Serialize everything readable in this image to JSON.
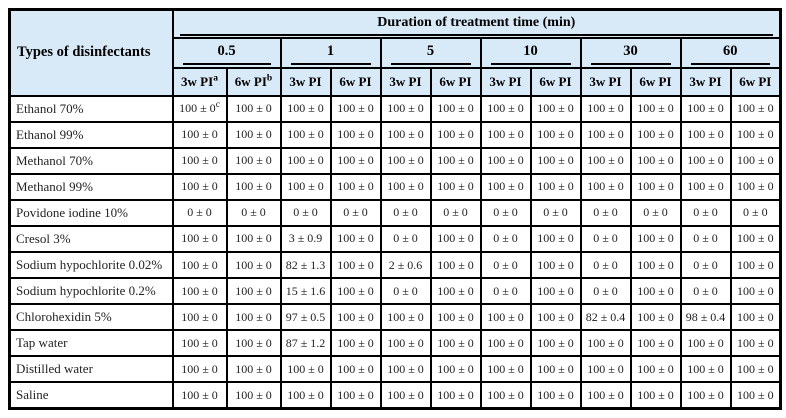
{
  "colors": {
    "header_bg": "#d8e9f7",
    "border": "#000000",
    "data_text": "#222222"
  },
  "table": {
    "corner_header": "Types of disinfectants",
    "duration_header": "Duration of treatment time (min)",
    "time_groups": [
      "0.5",
      "1",
      "5",
      "10",
      "30",
      "60"
    ],
    "pi_headers": [
      {
        "label": "3w PI",
        "sup": "a"
      },
      {
        "label": "6w PI",
        "sup": "b"
      },
      {
        "label": "3w PI"
      },
      {
        "label": "6w PI"
      },
      {
        "label": "3w PI"
      },
      {
        "label": "6w PI"
      },
      {
        "label": "3w PI"
      },
      {
        "label": "6w PI"
      },
      {
        "label": "3w PI"
      },
      {
        "label": "6w PI"
      },
      {
        "label": "3w PI"
      },
      {
        "label": "6w PI"
      }
    ],
    "rows": [
      {
        "label": "Ethanol 70%",
        "cells": [
          {
            "text": "100 ± 0",
            "sup": "c"
          },
          "100 ± 0",
          "100 ± 0",
          "100 ± 0",
          "100 ± 0",
          "100 ± 0",
          "100 ± 0",
          "100 ± 0",
          "100 ± 0",
          "100 ± 0",
          "100 ± 0",
          "100 ± 0"
        ]
      },
      {
        "label": "Ethanol 99%",
        "cells": [
          "100 ± 0",
          "100 ± 0",
          "100 ± 0",
          "100 ± 0",
          "100 ± 0",
          "100 ± 0",
          "100 ± 0",
          "100 ± 0",
          "100 ± 0",
          "100 ± 0",
          "100 ± 0",
          "100 ± 0"
        ]
      },
      {
        "label": "Methanol 70%",
        "cells": [
          "100 ± 0",
          "100 ± 0",
          "100 ± 0",
          "100 ± 0",
          "100 ± 0",
          "100 ± 0",
          "100 ± 0",
          "100 ± 0",
          "100 ± 0",
          "100 ± 0",
          "100 ± 0",
          "100 ± 0"
        ]
      },
      {
        "label": "Methanol 99%",
        "cells": [
          "100 ± 0",
          "100 ± 0",
          "100 ± 0",
          "100 ± 0",
          "100 ± 0",
          "100 ± 0",
          "100 ± 0",
          "100 ± 0",
          "100 ± 0",
          "100 ± 0",
          "100 ± 0",
          "100 ± 0"
        ]
      },
      {
        "label": "Povidone iodine 10%",
        "cells": [
          "0 ± 0",
          "0 ± 0",
          "0 ± 0",
          "0 ± 0",
          "0 ± 0",
          "0 ± 0",
          "0 ± 0",
          "0 ± 0",
          "0 ± 0",
          "0 ± 0",
          "0 ± 0",
          "0 ± 0"
        ]
      },
      {
        "label": "Cresol 3%",
        "cells": [
          "100 ± 0",
          "100 ± 0",
          "3 ± 0.9",
          "100 ± 0",
          "0 ± 0",
          "100 ± 0",
          "0 ± 0",
          "100 ± 0",
          "0 ± 0",
          "100 ± 0",
          "0 ± 0",
          "100 ± 0"
        ]
      },
      {
        "label": "Sodium hypochlorite 0.02%",
        "cells": [
          "100 ± 0",
          "100 ± 0",
          "82 ± 1.3",
          "100 ± 0",
          "2 ± 0.6",
          "100 ± 0",
          "0 ± 0",
          "100 ± 0",
          "0 ± 0",
          "100 ± 0",
          "0 ± 0",
          "100 ± 0"
        ]
      },
      {
        "label": "Sodium hypochlorite 0.2%",
        "cells": [
          "100 ± 0",
          "100 ± 0",
          "15 ± 1.6",
          "100 ± 0",
          "0 ± 0",
          "100 ± 0",
          "0 ± 0",
          "100 ± 0",
          "0 ± 0",
          "100 ± 0",
          "0 ± 0",
          "100 ± 0"
        ]
      },
      {
        "label": "Chlorohexidin 5%",
        "cells": [
          "100 ± 0",
          "100 ± 0",
          "97 ± 0.5",
          "100 ± 0",
          "100 ± 0",
          "100 ± 0",
          "100 ± 0",
          "100 ± 0",
          "82 ± 0.4",
          "100 ± 0",
          "98 ± 0.4",
          "100 ± 0"
        ]
      },
      {
        "label": "Tap water",
        "cells": [
          "100 ± 0",
          "100 ± 0",
          "87 ± 1.2",
          "100 ± 0",
          "100 ± 0",
          "100 ± 0",
          "100 ± 0",
          "100 ± 0",
          "100 ± 0",
          "100 ± 0",
          "100 ± 0",
          "100 ± 0"
        ]
      },
      {
        "label": "Distilled water",
        "cells": [
          "100 ± 0",
          "100 ± 0",
          "100 ± 0",
          "100 ± 0",
          "100 ± 0",
          "100 ± 0",
          "100 ± 0",
          "100 ± 0",
          "100 ± 0",
          "100 ± 0",
          "100 ± 0",
          "100 ± 0"
        ]
      },
      {
        "label": "Saline",
        "cells": [
          "100 ± 0",
          "100 ± 0",
          "100 ± 0",
          "100 ± 0",
          "100 ± 0",
          "100 ± 0",
          "100 ± 0",
          "100 ± 0",
          "100 ± 0",
          "100 ± 0",
          "100 ± 0",
          "100 ± 0"
        ]
      }
    ]
  }
}
